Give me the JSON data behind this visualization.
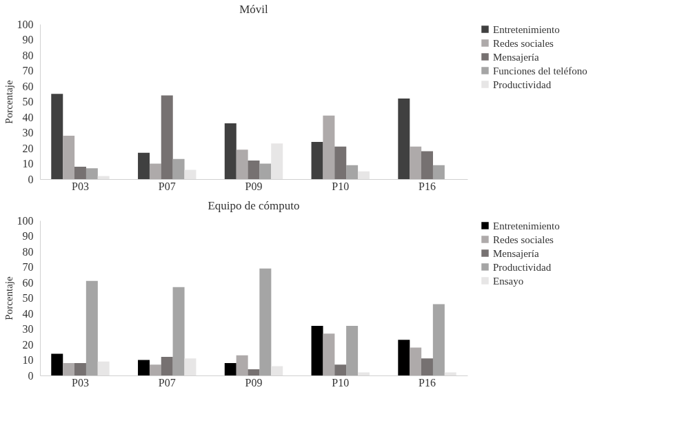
{
  "chart_data": [
    {
      "type": "bar",
      "title": "Móvil",
      "ylabel": "Porcentaje",
      "categories": [
        "P03",
        "P07",
        "P09",
        "P10",
        "P16"
      ],
      "ylim": [
        0,
        100
      ],
      "yticks": [
        0,
        10,
        20,
        30,
        40,
        50,
        60,
        70,
        80,
        90,
        100
      ],
      "grid": false,
      "legend": "right",
      "series": [
        {
          "name": "Entretenimiento",
          "color": "#404040",
          "values": [
            55,
            17,
            36,
            24,
            52
          ]
        },
        {
          "name": "Redes sociales",
          "color": "#aeaaaa",
          "values": [
            28,
            10,
            19,
            41,
            21
          ]
        },
        {
          "name": "Mensajería",
          "color": "#767171",
          "values": [
            8,
            54,
            12,
            21,
            18
          ]
        },
        {
          "name": "Funciones del teléfono",
          "color": "#a5a5a5",
          "values": [
            7,
            13,
            10,
            9,
            9
          ]
        },
        {
          "name": "Productividad",
          "color": "#e7e6e6",
          "values": [
            2,
            6,
            23,
            5,
            null
          ]
        }
      ]
    },
    {
      "type": "bar",
      "title": "Equipo de cómputo",
      "ylabel": "Porcentaje",
      "categories": [
        "P03",
        "P07",
        "P09",
        "P10",
        "P16"
      ],
      "ylim": [
        0,
        100
      ],
      "yticks": [
        0,
        10,
        20,
        30,
        40,
        50,
        60,
        70,
        80,
        90,
        100
      ],
      "grid": false,
      "legend": "right",
      "series": [
        {
          "name": "Entretenimiento",
          "color": "#000000",
          "values": [
            14,
            10,
            8,
            32,
            23
          ]
        },
        {
          "name": "Redes sociales",
          "color": "#aeaaaa",
          "values": [
            8,
            7,
            13,
            27,
            18
          ]
        },
        {
          "name": "Mensajería",
          "color": "#767171",
          "values": [
            8,
            12,
            4,
            7,
            11
          ]
        },
        {
          "name": "Productividad",
          "color": "#a5a5a5",
          "values": [
            61,
            57,
            69,
            32,
            46
          ]
        },
        {
          "name": "Ensayo",
          "color": "#e7e6e6",
          "values": [
            9,
            11,
            6,
            2,
            2
          ]
        }
      ]
    }
  ]
}
